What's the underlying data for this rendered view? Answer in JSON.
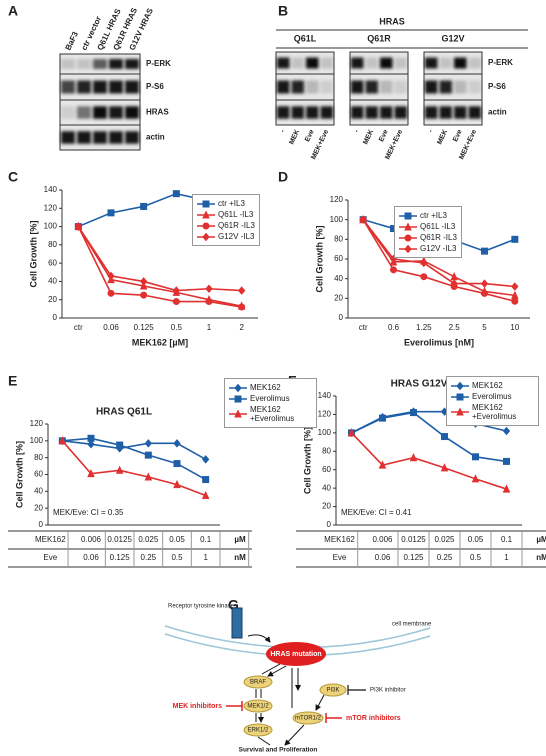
{
  "panels": [
    "A",
    "B",
    "C",
    "D",
    "E",
    "F",
    "G"
  ],
  "blot_a": {
    "lanes": [
      "BaF3",
      "ctr vector",
      "Q61L HRAS",
      "Q61R HRAS",
      "G12V HRAS"
    ],
    "rows": [
      "P-ERK",
      "P-S6",
      "HRAS",
      "actin"
    ]
  },
  "blot_b": {
    "header": "HRAS",
    "groups": [
      "Q61L",
      "Q61R",
      "G12V"
    ],
    "rows": [
      "P-ERK",
      "P-S6",
      "actin"
    ],
    "lanes": [
      "-",
      "MEK",
      "Eve",
      "MEK+Eve"
    ]
  },
  "chart_data": [
    {
      "type": "line",
      "ylabel": "Cell Growth [%]",
      "xlabel": "MEK162 [µM]",
      "categories": [
        "ctr",
        "0.06",
        "0.125",
        "0.5",
        "1",
        "2"
      ],
      "ylim": [
        0,
        140
      ],
      "yticks": [
        0,
        20,
        40,
        60,
        80,
        100,
        120,
        140
      ],
      "series": [
        {
          "name": "ctr +IL3",
          "color": "#1f5fa8",
          "marker": "square",
          "values": [
            100,
            115,
            122,
            136,
            128,
            105
          ]
        },
        {
          "name": "Q61L -IL3",
          "color": "#e03030",
          "marker": "triangle",
          "values": [
            100,
            42,
            35,
            28,
            20,
            13
          ]
        },
        {
          "name": "Q61R -IL3",
          "color": "#e03030",
          "marker": "circle",
          "values": [
            100,
            27,
            25,
            18,
            18,
            12
          ]
        },
        {
          "name": "G12V -IL3",
          "color": "#e03030",
          "marker": "diamond",
          "values": [
            100,
            46,
            40,
            30,
            32,
            30
          ]
        }
      ]
    },
    {
      "type": "line",
      "ylabel": "Cell Growth [%]",
      "xlabel": "Everolimus [nM]",
      "categories": [
        "ctr",
        "0.6",
        "1.25",
        "2.5",
        "5",
        "10"
      ],
      "ylim": [
        0,
        120
      ],
      "yticks": [
        0,
        20,
        40,
        60,
        80,
        100,
        120
      ],
      "series": [
        {
          "name": "ctr +IL3",
          "color": "#1f5fa8",
          "marker": "square",
          "values": [
            100,
            91,
            94,
            79,
            68,
            80
          ]
        },
        {
          "name": "Q61L -IL3",
          "color": "#e03030",
          "marker": "triangle",
          "values": [
            100,
            57,
            58,
            42,
            27,
            23
          ]
        },
        {
          "name": "Q61R -IL3",
          "color": "#e03030",
          "marker": "circle",
          "values": [
            100,
            49,
            42,
            32,
            25,
            17
          ]
        },
        {
          "name": "G12V -IL3",
          "color": "#e03030",
          "marker": "diamond",
          "values": [
            100,
            60,
            56,
            35,
            35,
            32
          ]
        }
      ]
    },
    {
      "type": "line",
      "title": "HRAS Q61L",
      "ylabel": "Cell Growth [%]",
      "annotation": "MEK/Eve: CI = 0.35",
      "ylim": [
        0,
        120
      ],
      "yticks": [
        0,
        20,
        40,
        60,
        80,
        100,
        120
      ],
      "dose_table": [
        {
          "label": "MEK162",
          "values": [
            "0.006",
            "0.0125",
            "0.025",
            "0.05",
            "0.1"
          ],
          "unit": "µM"
        },
        {
          "label": "Eve",
          "values": [
            "0.06",
            "0.125",
            "0.25",
            "0.5",
            "1"
          ],
          "unit": "nM"
        }
      ],
      "series": [
        {
          "name": "MEK162",
          "color": "#1f5fa8",
          "marker": "diamond",
          "values": [
            100,
            96,
            91,
            97,
            97,
            78
          ]
        },
        {
          "name": "Everolimus",
          "color": "#1f5fa8",
          "marker": "square",
          "values": [
            100,
            103,
            95,
            83,
            73,
            54
          ]
        },
        {
          "name": "MEK162 +Everolimus",
          "color": "#e03030",
          "marker": "triangle",
          "values": [
            100,
            61,
            65,
            57,
            48,
            35
          ]
        }
      ]
    },
    {
      "type": "line",
      "title": "HRAS G12V",
      "ylabel": "Cell Growth [%]",
      "annotation": "MEK/Eve: CI = 0.41",
      "ylim": [
        0,
        140
      ],
      "yticks": [
        0,
        20,
        40,
        60,
        80,
        100,
        120,
        140
      ],
      "dose_table": [
        {
          "label": "MEK162",
          "values": [
            "0.006",
            "0.0125",
            "0.025",
            "0.05",
            "0.1"
          ],
          "unit": "µM"
        },
        {
          "label": "Eve",
          "values": [
            "0.06",
            "0.125",
            "0.25",
            "0.5",
            "1"
          ],
          "unit": "nM"
        }
      ],
      "series": [
        {
          "name": "MEK162",
          "color": "#1f5fa8",
          "marker": "diamond",
          "values": [
            100,
            117,
            123,
            123,
            110,
            102
          ]
        },
        {
          "name": "Everolimus",
          "color": "#1f5fa8",
          "marker": "square",
          "values": [
            100,
            116,
            122,
            96,
            74,
            69
          ]
        },
        {
          "name": "MEK162 +Everolimus",
          "color": "#e03030",
          "marker": "triangle",
          "values": [
            100,
            65,
            73,
            62,
            50,
            39
          ]
        }
      ]
    }
  ],
  "diagram": {
    "receptor": "Receptor tyrosine kinases",
    "membrane": "cell membrane",
    "hras": "HRAS mutation",
    "braf": "BRAF",
    "mek": "MEK1/2",
    "erk": "ERK1/2",
    "pi3k": "PI3K",
    "mtor": "mTOR1/2",
    "pi3k_inhibitor": "PI3K inhibitor",
    "mek_inhibitors": "MEK inhibitors",
    "mtor_inhibitors": "mTOR inhibitors",
    "outcome": "Survival and Proliferation"
  }
}
